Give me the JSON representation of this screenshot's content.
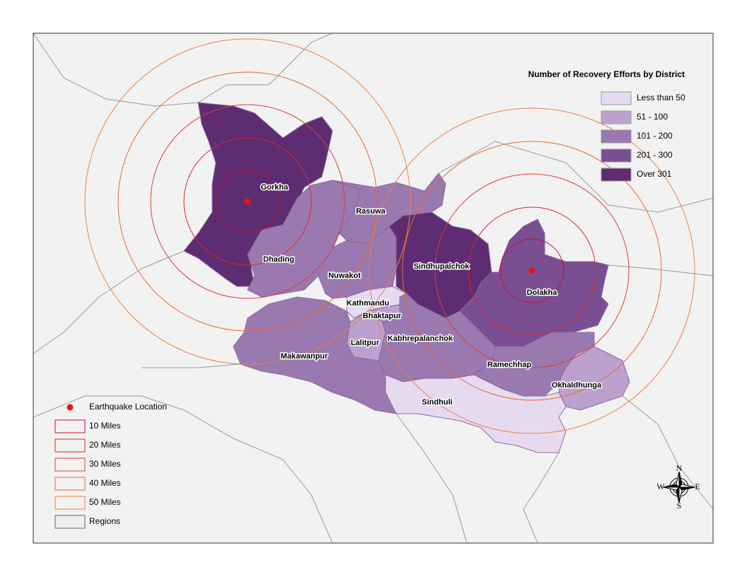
{
  "title": "Number of Recovery Efforts by District",
  "district_legend": [
    {
      "label": "Less than 50",
      "color": "#e6daf0"
    },
    {
      "label": "51 - 100",
      "color": "#bca1cf"
    },
    {
      "label": "101 - 200",
      "color": "#9a78b0"
    },
    {
      "label": "201 - 300",
      "color": "#7a4e92"
    },
    {
      "label": "Over 301",
      "color": "#5d2c72"
    }
  ],
  "districts": [
    {
      "name": "Gorkha",
      "color": "#5d2c72"
    },
    {
      "name": "Dhading",
      "color": "#9a78b0"
    },
    {
      "name": "Rasuwa",
      "color": "#9a78b0"
    },
    {
      "name": "Nuwakot",
      "color": "#9a78b0"
    },
    {
      "name": "Sindhupalchok",
      "color": "#5d2c72"
    },
    {
      "name": "Dolakha",
      "color": "#7a4e92"
    },
    {
      "name": "Kathmandu",
      "color": "#e6daf0"
    },
    {
      "name": "Bhaktapur",
      "color": "#bca1cf"
    },
    {
      "name": "Lalitpur",
      "color": "#bca1cf"
    },
    {
      "name": "Kabhrepalanchok",
      "color": "#9a78b0"
    },
    {
      "name": "Makawanpur",
      "color": "#9a78b0"
    },
    {
      "name": "Ramechhap",
      "color": "#9a78b0"
    },
    {
      "name": "Okhaldhunga",
      "color": "#bca1cf"
    },
    {
      "name": "Sindhuli",
      "color": "#e6daf0"
    }
  ],
  "map_legend": {
    "earthquake": {
      "label": "Earthquake Location",
      "color": "#ee1111"
    },
    "rings": [
      {
        "label": "10 Miles",
        "color": "#c8102e"
      },
      {
        "label": "20 Miles",
        "color": "#d42a2a"
      },
      {
        "label": "30 Miles",
        "color": "#e03c3c"
      },
      {
        "label": "40 Miles",
        "color": "#ea6a2a"
      },
      {
        "label": "50 Miles",
        "color": "#f08040"
      }
    ],
    "regions": {
      "label": "Regions",
      "color": "#f0f0f0"
    }
  },
  "compass": {
    "n": "N",
    "e": "E",
    "s": "S",
    "w": "W"
  }
}
